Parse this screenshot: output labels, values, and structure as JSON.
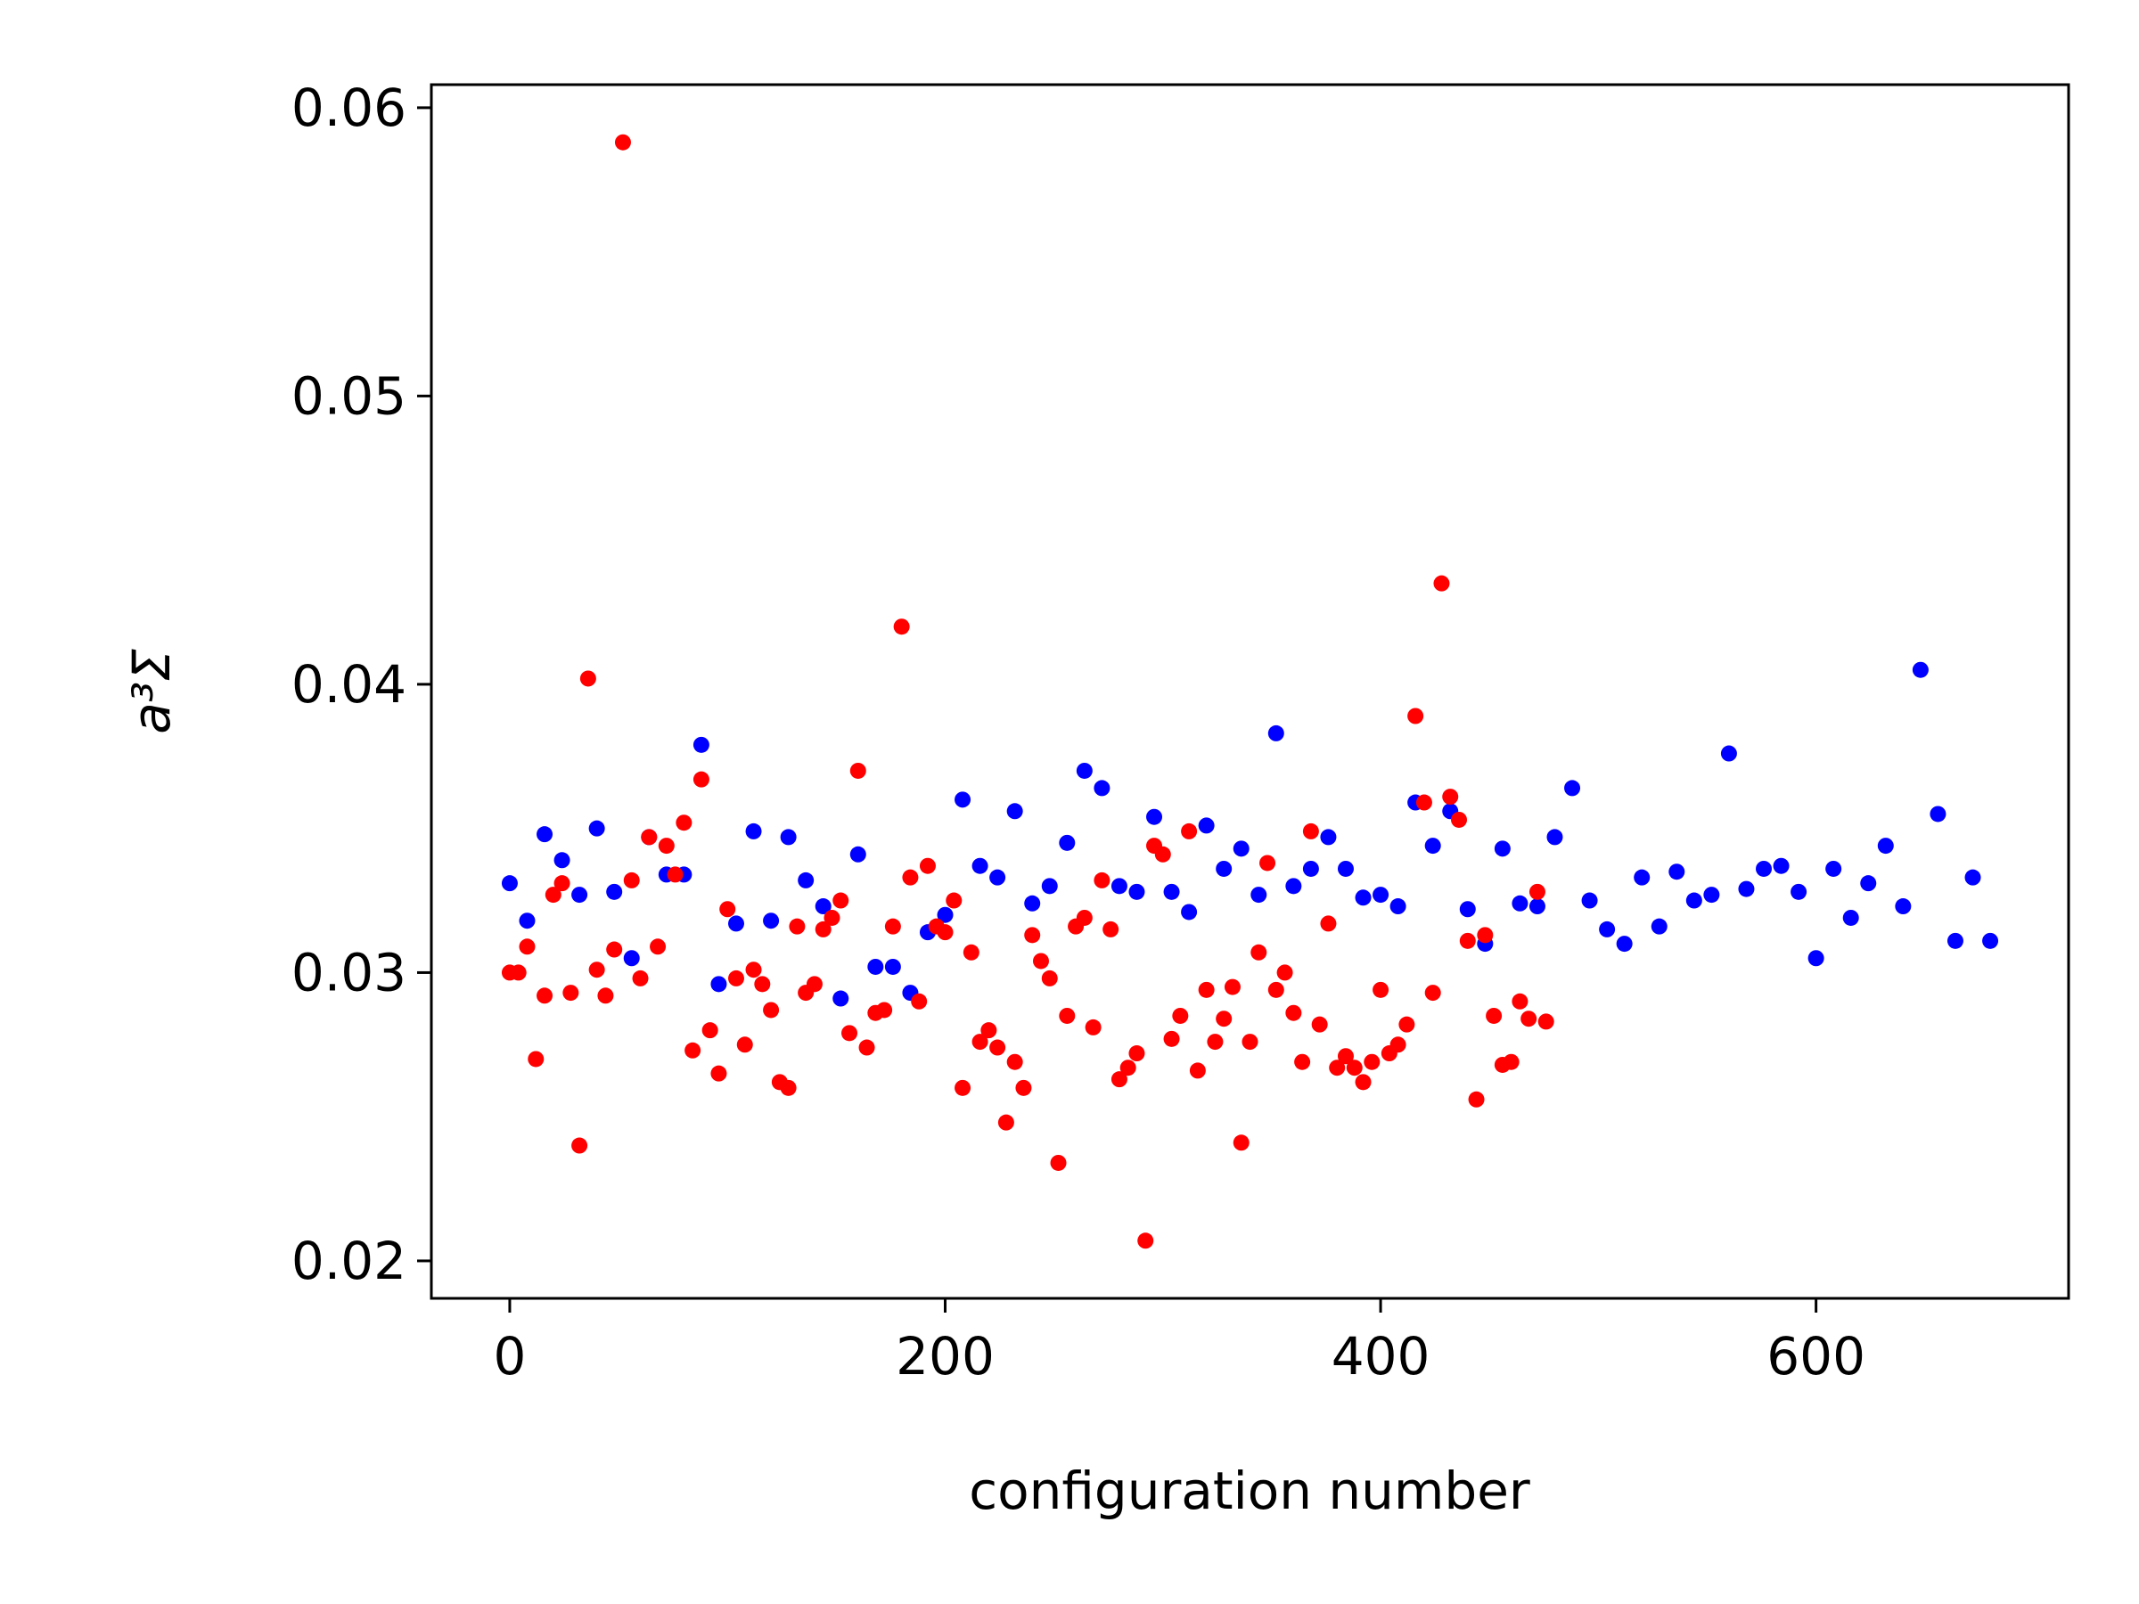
{
  "chart_data": {
    "type": "scatter",
    "title": "",
    "xlabel": "configuration number",
    "ylabel": "a³Σ",
    "xlim": [
      -36,
      716
    ],
    "ylim": [
      0.0187,
      0.0608
    ],
    "xticks": [
      "0",
      "200",
      "400",
      "600"
    ],
    "xtick_values": [
      0,
      200,
      400,
      600
    ],
    "yticks": [
      "0.02",
      "0.03",
      "0.04",
      "0.05",
      "0.06"
    ],
    "ytick_values": [
      0.02,
      0.03,
      0.04,
      0.05,
      0.06
    ],
    "grid": false,
    "legend": "none",
    "series": [
      {
        "color": "#0000ff",
        "points": [
          [
            0,
            0.0331
          ],
          [
            8,
            0.0318
          ],
          [
            16,
            0.0348
          ],
          [
            24,
            0.0339
          ],
          [
            32,
            0.0327
          ],
          [
            40,
            0.035
          ],
          [
            48,
            0.0328
          ],
          [
            56,
            0.0305
          ],
          [
            64,
            0.0347
          ],
          [
            72,
            0.0334
          ],
          [
            80,
            0.0334
          ],
          [
            88,
            0.0379
          ],
          [
            96,
            0.0296
          ],
          [
            104,
            0.0317
          ],
          [
            112,
            0.0349
          ],
          [
            120,
            0.0318
          ],
          [
            128,
            0.0347
          ],
          [
            136,
            0.0332
          ],
          [
            144,
            0.0323
          ],
          [
            152,
            0.0291
          ],
          [
            160,
            0.0341
          ],
          [
            168,
            0.0302
          ],
          [
            176,
            0.0302
          ],
          [
            184,
            0.0293
          ],
          [
            192,
            0.0314
          ],
          [
            200,
            0.032
          ],
          [
            208,
            0.036
          ],
          [
            216,
            0.0337
          ],
          [
            224,
            0.0333
          ],
          [
            232,
            0.0356
          ],
          [
            240,
            0.0324
          ],
          [
            248,
            0.033
          ],
          [
            256,
            0.0345
          ],
          [
            264,
            0.037
          ],
          [
            272,
            0.0364
          ],
          [
            280,
            0.033
          ],
          [
            288,
            0.0328
          ],
          [
            296,
            0.0354
          ],
          [
            304,
            0.0328
          ],
          [
            312,
            0.0321
          ],
          [
            320,
            0.0351
          ],
          [
            328,
            0.0336
          ],
          [
            336,
            0.0343
          ],
          [
            344,
            0.0327
          ],
          [
            352,
            0.0383
          ],
          [
            360,
            0.033
          ],
          [
            368,
            0.0336
          ],
          [
            376,
            0.0347
          ],
          [
            384,
            0.0336
          ],
          [
            392,
            0.0326
          ],
          [
            400,
            0.0327
          ],
          [
            408,
            0.0323
          ],
          [
            416,
            0.0359
          ],
          [
            424,
            0.0344
          ],
          [
            432,
            0.0356
          ],
          [
            440,
            0.0322
          ],
          [
            448,
            0.031
          ],
          [
            456,
            0.0343
          ],
          [
            464,
            0.0324
          ],
          [
            472,
            0.0323
          ],
          [
            480,
            0.0347
          ],
          [
            488,
            0.0364
          ],
          [
            496,
            0.0325
          ],
          [
            504,
            0.0315
          ],
          [
            512,
            0.031
          ],
          [
            520,
            0.0333
          ],
          [
            528,
            0.0316
          ],
          [
            536,
            0.0335
          ],
          [
            544,
            0.0325
          ],
          [
            552,
            0.0327
          ],
          [
            560,
            0.0376
          ],
          [
            568,
            0.0329
          ],
          [
            576,
            0.0336
          ],
          [
            584,
            0.0337
          ],
          [
            592,
            0.0328
          ],
          [
            600,
            0.0305
          ],
          [
            608,
            0.0336
          ],
          [
            616,
            0.0319
          ],
          [
            624,
            0.0331
          ],
          [
            632,
            0.0344
          ],
          [
            640,
            0.0323
          ],
          [
            648,
            0.0405
          ],
          [
            656,
            0.0355
          ],
          [
            664,
            0.0311
          ],
          [
            672,
            0.0333
          ],
          [
            680,
            0.0311
          ]
        ]
      },
      {
        "color": "#ff0000",
        "points": [
          [
            0,
            0.03
          ],
          [
            4,
            0.03
          ],
          [
            8,
            0.0309
          ],
          [
            12,
            0.027
          ],
          [
            16,
            0.0292
          ],
          [
            20,
            0.0327
          ],
          [
            24,
            0.0331
          ],
          [
            28,
            0.0293
          ],
          [
            32,
            0.024
          ],
          [
            36,
            0.0402
          ],
          [
            40,
            0.0301
          ],
          [
            44,
            0.0292
          ],
          [
            48,
            0.0308
          ],
          [
            52,
            0.0588
          ],
          [
            56,
            0.0332
          ],
          [
            60,
            0.0298
          ],
          [
            64,
            0.0347
          ],
          [
            68,
            0.0309
          ],
          [
            72,
            0.0344
          ],
          [
            76,
            0.0334
          ],
          [
            80,
            0.0352
          ],
          [
            84,
            0.0273
          ],
          [
            88,
            0.0367
          ],
          [
            92,
            0.028
          ],
          [
            96,
            0.0265
          ],
          [
            100,
            0.0322
          ],
          [
            104,
            0.0298
          ],
          [
            108,
            0.0275
          ],
          [
            112,
            0.0301
          ],
          [
            116,
            0.0296
          ],
          [
            120,
            0.0287
          ],
          [
            124,
            0.0262
          ],
          [
            128,
            0.026
          ],
          [
            132,
            0.0316
          ],
          [
            136,
            0.0293
          ],
          [
            140,
            0.0296
          ],
          [
            144,
            0.0315
          ],
          [
            148,
            0.0319
          ],
          [
            152,
            0.0325
          ],
          [
            156,
            0.0279
          ],
          [
            160,
            0.037
          ],
          [
            164,
            0.0274
          ],
          [
            168,
            0.0286
          ],
          [
            172,
            0.0287
          ],
          [
            176,
            0.0316
          ],
          [
            180,
            0.042
          ],
          [
            184,
            0.0333
          ],
          [
            188,
            0.029
          ],
          [
            192,
            0.0337
          ],
          [
            196,
            0.0316
          ],
          [
            200,
            0.0314
          ],
          [
            204,
            0.0325
          ],
          [
            208,
            0.026
          ],
          [
            212,
            0.0307
          ],
          [
            216,
            0.0276
          ],
          [
            220,
            0.028
          ],
          [
            224,
            0.0274
          ],
          [
            228,
            0.0248
          ],
          [
            232,
            0.0269
          ],
          [
            236,
            0.026
          ],
          [
            240,
            0.0313
          ],
          [
            244,
            0.0304
          ],
          [
            248,
            0.0298
          ],
          [
            252,
            0.0234
          ],
          [
            256,
            0.0285
          ],
          [
            260,
            0.0316
          ],
          [
            264,
            0.0319
          ],
          [
            268,
            0.0281
          ],
          [
            272,
            0.0332
          ],
          [
            276,
            0.0315
          ],
          [
            280,
            0.0263
          ],
          [
            284,
            0.0267
          ],
          [
            288,
            0.0272
          ],
          [
            292,
            0.0207
          ],
          [
            296,
            0.0344
          ],
          [
            300,
            0.0341
          ],
          [
            304,
            0.0277
          ],
          [
            308,
            0.0285
          ],
          [
            312,
            0.0349
          ],
          [
            316,
            0.0266
          ],
          [
            320,
            0.0294
          ],
          [
            324,
            0.0276
          ],
          [
            328,
            0.0284
          ],
          [
            332,
            0.0295
          ],
          [
            336,
            0.0241
          ],
          [
            340,
            0.0276
          ],
          [
            344,
            0.0307
          ],
          [
            348,
            0.0338
          ],
          [
            352,
            0.0294
          ],
          [
            356,
            0.03
          ],
          [
            360,
            0.0286
          ],
          [
            364,
            0.0269
          ],
          [
            368,
            0.0349
          ],
          [
            372,
            0.0282
          ],
          [
            376,
            0.0317
          ],
          [
            380,
            0.0267
          ],
          [
            384,
            0.0271
          ],
          [
            388,
            0.0267
          ],
          [
            392,
            0.0262
          ],
          [
            396,
            0.0269
          ],
          [
            400,
            0.0294
          ],
          [
            404,
            0.0272
          ],
          [
            408,
            0.0275
          ],
          [
            412,
            0.0282
          ],
          [
            416,
            0.0389
          ],
          [
            420,
            0.0359
          ],
          [
            424,
            0.0293
          ],
          [
            428,
            0.0435
          ],
          [
            432,
            0.0361
          ],
          [
            436,
            0.0353
          ],
          [
            440,
            0.0311
          ],
          [
            444,
            0.0256
          ],
          [
            448,
            0.0313
          ],
          [
            452,
            0.0285
          ],
          [
            456,
            0.0268
          ],
          [
            460,
            0.0269
          ],
          [
            464,
            0.029
          ],
          [
            468,
            0.0284
          ],
          [
            472,
            0.0328
          ],
          [
            476,
            0.0283
          ]
        ]
      }
    ]
  }
}
